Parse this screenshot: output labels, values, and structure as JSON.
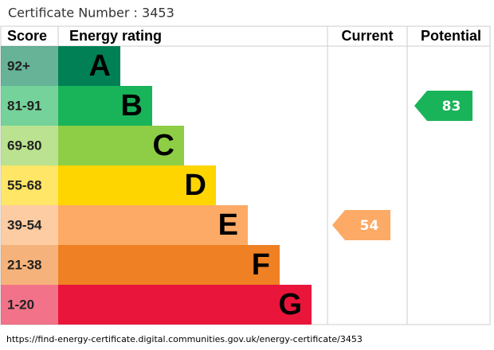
{
  "title": "Certificate Number : 3453",
  "headers": {
    "score": "Score",
    "rating": "Energy rating",
    "current": "Current",
    "potential": "Potential"
  },
  "bands": [
    {
      "score": "92+",
      "letter": "A",
      "color": "#008054"
    },
    {
      "score": "81-91",
      "letter": "B",
      "color": "#19b459"
    },
    {
      "score": "69-80",
      "letter": "C",
      "color": "#8dce46"
    },
    {
      "score": "55-68",
      "letter": "D",
      "color": "#ffd500"
    },
    {
      "score": "39-54",
      "letter": "E",
      "color": "#fcaa65"
    },
    {
      "score": "21-38",
      "letter": "F",
      "color": "#ef8023"
    },
    {
      "score": "1-20",
      "letter": "G",
      "color": "#e9153b"
    }
  ],
  "current": 54,
  "potential": 83,
  "url": "https://find-energy-certificate.digital.communities.gov.uk/energy-certificate/3453"
}
